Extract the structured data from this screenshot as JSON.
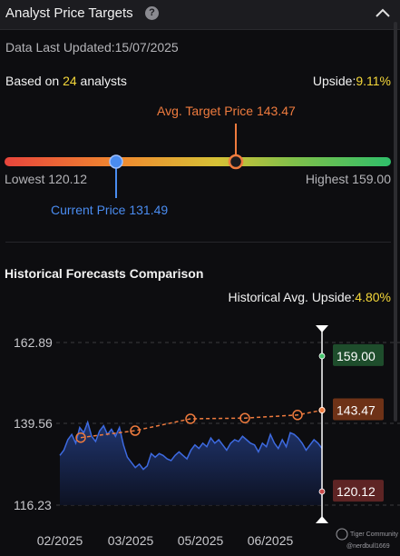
{
  "header": {
    "title": "Analyst Price Targets"
  },
  "summary": {
    "updated_label": "Data Last Updated:",
    "updated_value": "15/07/2025",
    "based_prefix": "Based on",
    "analyst_count": "24",
    "based_suffix": "analysts",
    "upside_label": "Upside:",
    "upside_value": "9.11%"
  },
  "range": {
    "avg_target_label": "Avg. Target Price 143.47",
    "lowest_label": "Lowest 120.12",
    "highest_label": "Highest 159.00",
    "current_label": "Current Price 131.49",
    "lowest": 120.12,
    "highest": 159.0,
    "avg": 143.47,
    "current": 131.49
  },
  "history": {
    "title": "Historical Forecasts Comparison",
    "upside_label": "Historical Avg. Upside:",
    "upside_value": "4.80%",
    "watermark_brand": "Tiger Community",
    "watermark_user": "@nerdbull1669"
  },
  "chart_data": {
    "type": "line",
    "ylim": [
      116.23,
      162.89
    ],
    "y_ticks": [
      "162.89",
      "139.56",
      "116.23"
    ],
    "x_ticks": [
      "02/2025",
      "03/2025",
      "05/2025",
      "06/2025"
    ],
    "series": [
      {
        "values": [
          130.5,
          132,
          135,
          136.5,
          134,
          138.5,
          137,
          140,
          136,
          134.5,
          137.5,
          139,
          136.5,
          138,
          136,
          138.5,
          133.5,
          130,
          128.5,
          127,
          128,
          126.5,
          127.5,
          131,
          130,
          131,
          130.5,
          129.5,
          129,
          130.5,
          131.5,
          130.5,
          129.5,
          132,
          133.5,
          132.5,
          134,
          133,
          135.5,
          134,
          135,
          133.5,
          132,
          134,
          135,
          134.5,
          136,
          135,
          134,
          133.5,
          131.5,
          134,
          133,
          136.5,
          134,
          132.5,
          135,
          133,
          137,
          136.5,
          135.5,
          134,
          132,
          133.5,
          135,
          134,
          132.5
        ]
      },
      {
        "values": [
          135.6,
          137.6,
          141.0,
          141.2,
          142.1,
          143.47
        ]
      }
    ],
    "tags": [
      {
        "label": "159.00",
        "value": 159.0,
        "color": "#1e4d2c",
        "dot": "#43c46b"
      },
      {
        "label": "143.47",
        "value": 143.47,
        "color": "#6e3217",
        "dot": "#ef7b3e"
      },
      {
        "label": "120.12",
        "value": 120.12,
        "color": "#5e2424",
        "dot": "#c84a4a"
      }
    ]
  },
  "colors": {
    "accent_yellow": "#f5d83a",
    "avg_orange": "#ef7b3e",
    "current_blue": "#4a8cf0",
    "price_line": "#3d6ae0"
  }
}
